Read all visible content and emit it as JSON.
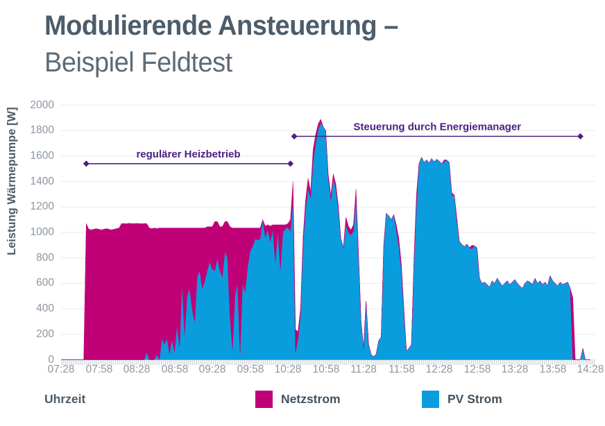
{
  "page": {
    "background": "#ffffff"
  },
  "title": {
    "line1": "Modulierende Ansteuerung –",
    "line2": "Beispiel Feldtest"
  },
  "colors": {
    "netzstrom": "#c00076",
    "pv_strom": "#0a9dde",
    "annotation_purple": "#4b2081",
    "title_text": "#4d5c69",
    "subtitle_text": "#5c6b78",
    "tick_label": "#8c96a1",
    "legend_label": "#44525e",
    "gridline": "#e8eaec"
  },
  "chart_data": {
    "type": "area",
    "stacked": true,
    "title": "Modulierende Ansteuerung – Beispiel Feldtest",
    "xlabel": "Uhrzeit",
    "ylabel": "Leistung Wärmepumpe [W]",
    "ylim": [
      0,
      2000
    ],
    "y_ticks": [
      0,
      200,
      400,
      600,
      800,
      1000,
      1200,
      1400,
      1600,
      1800,
      2000
    ],
    "x_start": "07:28",
    "x_end": "14:28",
    "x_tick_labels": [
      "07:28",
      "07:58",
      "08:28",
      "08:58",
      "09:28",
      "09:58",
      "10:28",
      "10:58",
      "11:28",
      "11:58",
      "12:28",
      "12:58",
      "13:28",
      "13:58",
      "14:28"
    ],
    "sample_step_minutes": 2,
    "grid": "horizontal",
    "legend_position": "bottom",
    "legend": [
      {
        "label": "Netzstrom",
        "color": "#c00076"
      },
      {
        "label": "PV Strom",
        "color": "#0a9dde"
      }
    ],
    "annotations": [
      {
        "label": "regulärer Heizbetrieb",
        "from": "07:48",
        "to": "10:30",
        "y_value": 1540,
        "color": "#4b2081"
      },
      {
        "label": "Steuerung durch Energiemanager",
        "from": "10:33",
        "to": "14:20",
        "y_value": 1755,
        "color": "#4b2081"
      }
    ],
    "series": [
      {
        "name": "PV Strom",
        "color": "#0a9dde",
        "stack": "bottom",
        "values": [
          0,
          0,
          0,
          0,
          0,
          0,
          0,
          0,
          0,
          0,
          0,
          0,
          0,
          0,
          0,
          0,
          0,
          0,
          0,
          0,
          0,
          0,
          0,
          0,
          0,
          0,
          0,
          0,
          0,
          0,
          0,
          0,
          0,
          0,
          60,
          0,
          0,
          0,
          40,
          0,
          170,
          120,
          170,
          50,
          160,
          60,
          270,
          100,
          600,
          200,
          500,
          560,
          400,
          300,
          650,
          700,
          560,
          620,
          700,
          770,
          710,
          700,
          800,
          700,
          650,
          850,
          800,
          345,
          80,
          500,
          600,
          50,
          600,
          530,
          730,
          850,
          890,
          950,
          940,
          950,
          1100,
          960,
          1020,
          930,
          1020,
          770,
          1010,
          710,
          1000,
          1030,
          1040,
          1010,
          1250,
          60,
          160,
          350,
          900,
          1180,
          1350,
          1270,
          1560,
          1700,
          1810,
          1860,
          1830,
          1800,
          1430,
          1250,
          1430,
          1340,
          1180,
          950,
          880,
          1060,
          1000,
          980,
          1010,
          1285,
          820,
          300,
          90,
          460,
          120,
          40,
          25,
          45,
          150,
          180,
          900,
          1150,
          1130,
          1100,
          1140,
          1020,
          890,
          700,
          380,
          70,
          90,
          120,
          750,
          1220,
          1540,
          1590,
          1550,
          1570,
          1545,
          1580,
          1555,
          1575,
          1560,
          1540,
          1555,
          1570,
          1550,
          1290,
          1295,
          1090,
          930,
          905,
          890,
          910,
          880,
          870,
          895,
          880,
          640,
          600,
          610,
          590,
          570,
          620,
          600,
          640,
          610,
          580,
          600,
          620,
          590,
          610,
          630,
          600,
          580,
          560,
          600,
          620,
          610,
          590,
          640,
          600,
          620,
          590,
          610,
          580,
          660,
          620,
          600,
          580,
          610,
          590,
          600,
          610,
          560,
          0,
          0,
          0,
          0,
          90,
          0,
          0,
          0
        ]
      },
      {
        "name": "Netzstrom",
        "color": "#c00076",
        "stack": "top",
        "values": [
          0,
          0,
          0,
          0,
          0,
          0,
          0,
          0,
          0,
          0,
          1070,
          1025,
          1020,
          1025,
          1030,
          1025,
          1020,
          1025,
          1030,
          1025,
          1020,
          1025,
          1030,
          1035,
          1070,
          1070,
          1068,
          1072,
          1070,
          1069,
          1071,
          1070,
          1068,
          1070,
          1010,
          1035,
          1030,
          1035,
          990,
          1035,
          865,
          915,
          865,
          985,
          875,
          975,
          765,
          935,
          435,
          835,
          535,
          475,
          635,
          735,
          385,
          335,
          475,
          415,
          345,
          275,
          335,
          385,
          285,
          345,
          395,
          235,
          285,
          700,
          955,
          535,
          435,
          985,
          435,
          505,
          305,
          185,
          145,
          85,
          95,
          85,
          0,
          90,
          40,
          120,
          40,
          290,
          50,
          350,
          60,
          30,
          30,
          90,
          150,
          180,
          60,
          50,
          60,
          70,
          75,
          50,
          90,
          70,
          40,
          30,
          0,
          0,
          30,
          40,
          30,
          40,
          30,
          0,
          0,
          60,
          50,
          40,
          50,
          55,
          30,
          0,
          0,
          0,
          0,
          0,
          0,
          0,
          0,
          0,
          0,
          0,
          0,
          0,
          0,
          40,
          60,
          50,
          30,
          0,
          0,
          0,
          50,
          80,
          0,
          0,
          0,
          0,
          0,
          0,
          0,
          0,
          0,
          0,
          15,
          0,
          0,
          20,
          0,
          30,
          0,
          0,
          0,
          0,
          0,
          30,
          0,
          0,
          0,
          0,
          0,
          0,
          0,
          0,
          0,
          0,
          0,
          0,
          0,
          0,
          0,
          0,
          0,
          0,
          0,
          0,
          0,
          0,
          0,
          0,
          0,
          0,
          0,
          0,
          0,
          0,
          0,
          0,
          0,
          0,
          0,
          0,
          0,
          0,
          0,
          490,
          0,
          0,
          0,
          0,
          0,
          0,
          0
        ]
      }
    ]
  }
}
